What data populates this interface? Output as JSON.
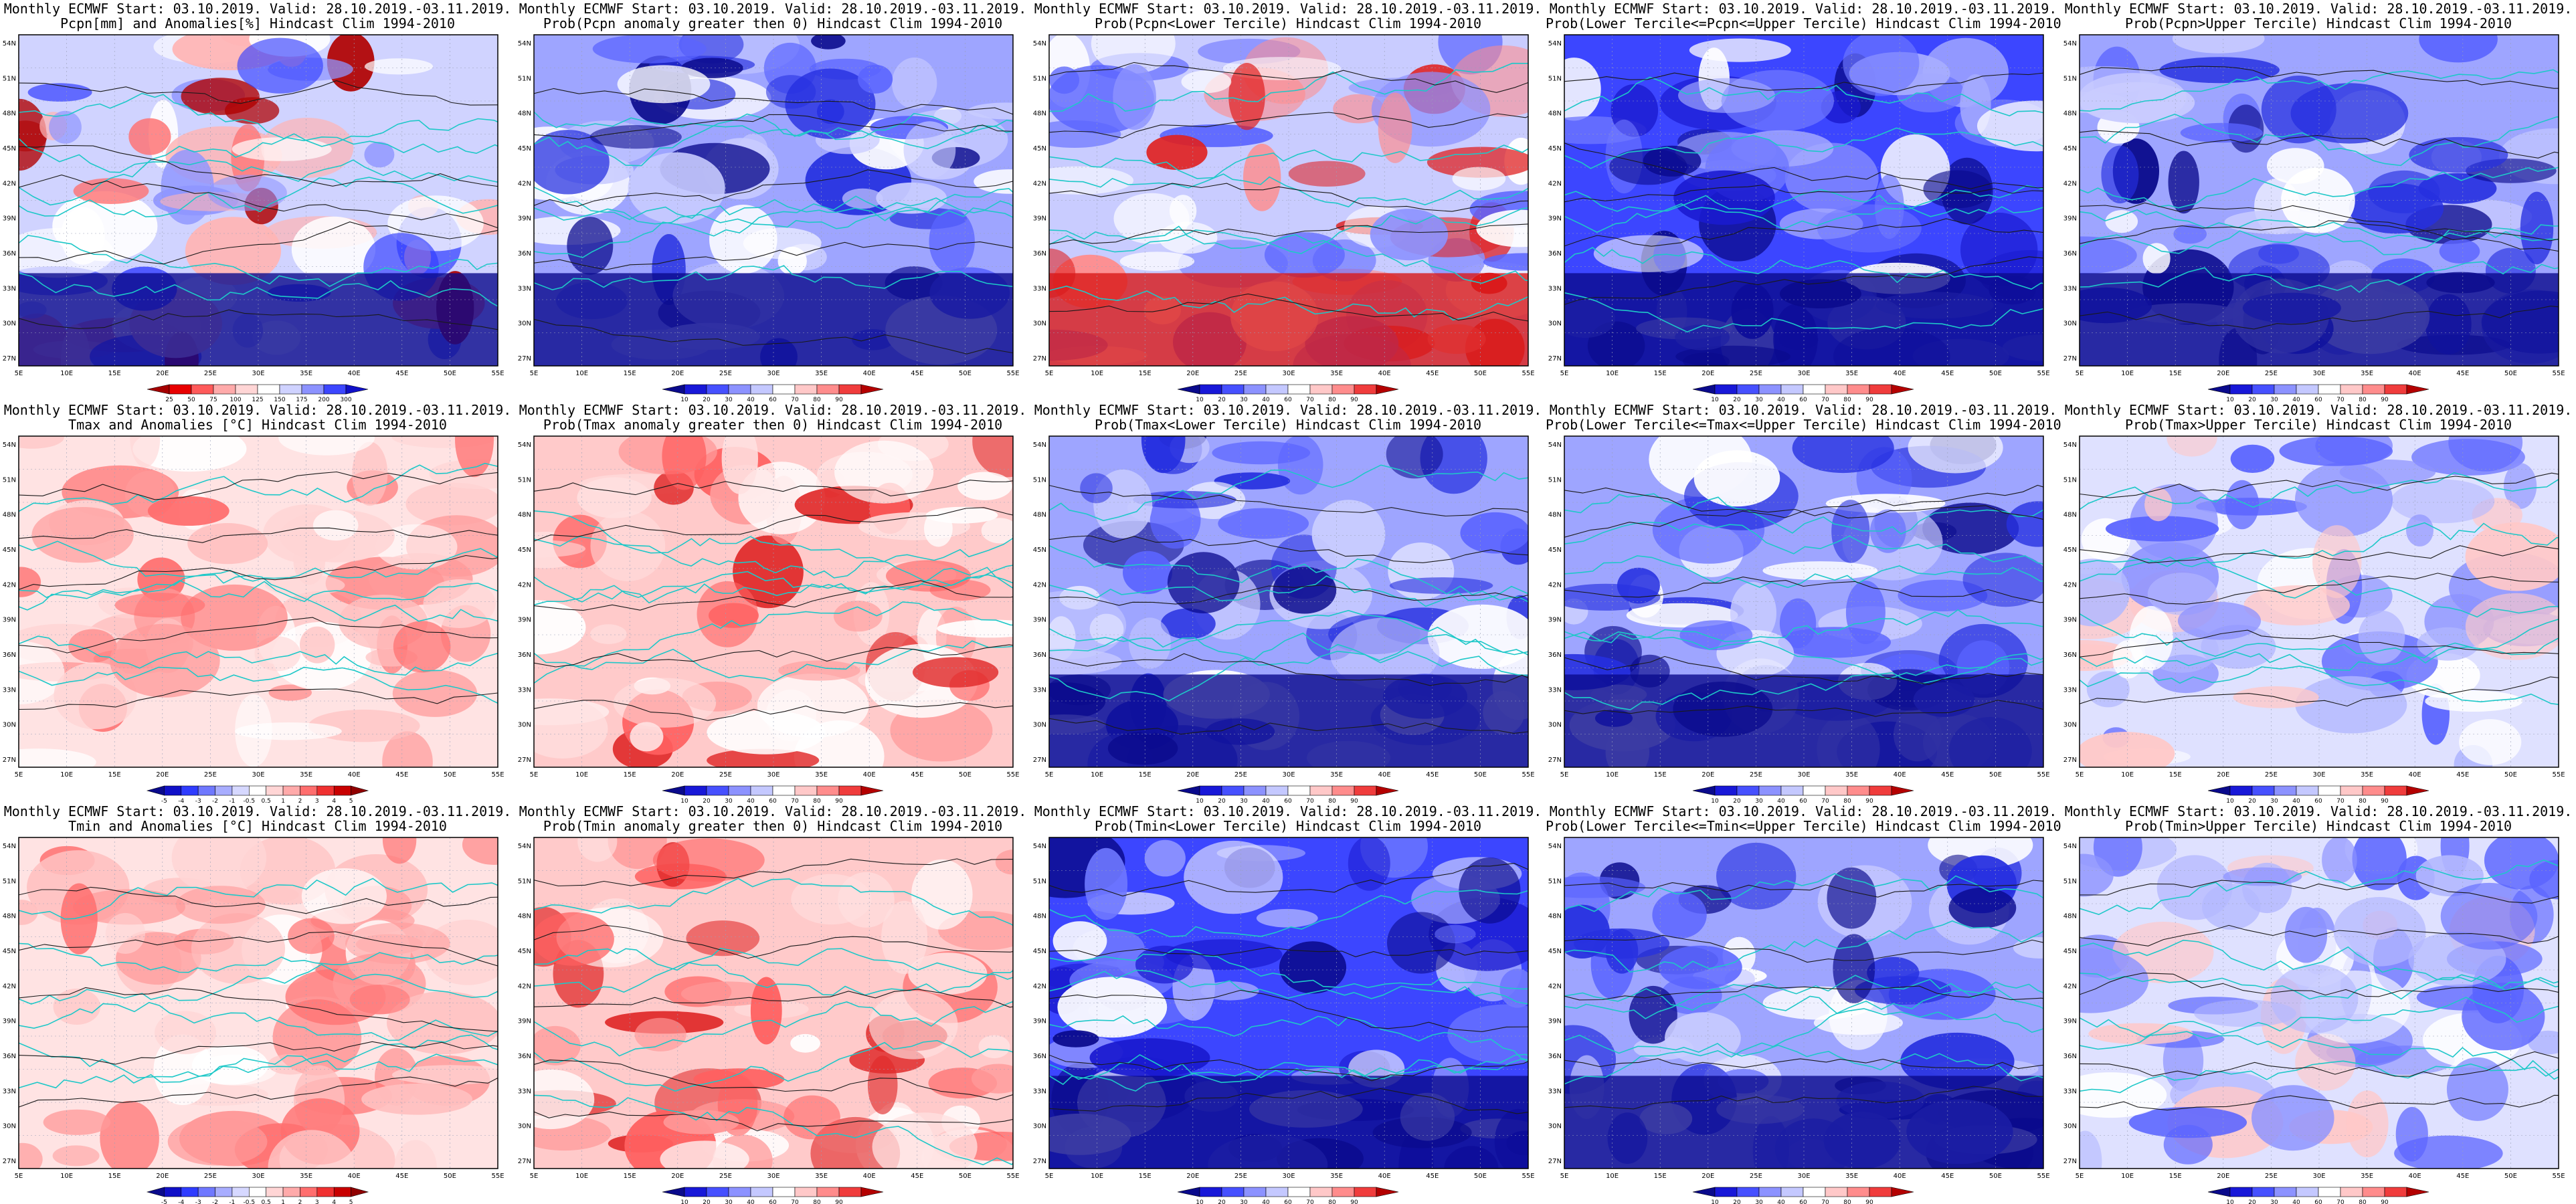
{
  "header": {
    "line1": "Monthly ECMWF Start: 03.10.2019. Valid: 28.10.2019.-03.11.2019."
  },
  "axes": {
    "lat_labels": [
      "54N",
      "51N",
      "48N",
      "45N",
      "42N",
      "39N",
      "36N",
      "33N",
      "30N",
      "27N"
    ],
    "lon_labels": [
      "5E",
      "10E",
      "15E",
      "20E",
      "25E",
      "30E",
      "35E",
      "40E",
      "45E",
      "50E",
      "55E"
    ]
  },
  "colorbars": {
    "precip": {
      "labels": [
        "25",
        "50",
        "75",
        "100",
        "125",
        "150",
        "175",
        "200",
        "300"
      ],
      "colors": [
        "#a50000",
        "#e80000",
        "#ff5a5a",
        "#ffaaaa",
        "#ffd5d5",
        "#ffffff",
        "#cfd2ff",
        "#8c92ff",
        "#3c46ff",
        "#1010c8"
      ]
    },
    "anomaly": {
      "labels": [
        "-5",
        "-4",
        "-3",
        "-2",
        "-1",
        "-0.5",
        "0.5",
        "1",
        "2",
        "3",
        "4",
        "5"
      ],
      "colors": [
        "#0a0a8c",
        "#1010c8",
        "#2f3cff",
        "#6f78ff",
        "#a8adff",
        "#d6d8ff",
        "#ffffff",
        "#ffd5d5",
        "#ffaaaa",
        "#ff6e6e",
        "#f03030",
        "#c80000",
        "#900000"
      ]
    },
    "probability": {
      "labels": [
        "10",
        "20",
        "30",
        "40",
        "60",
        "70",
        "80",
        "90"
      ],
      "colors": [
        "#0a0a8c",
        "#1818d8",
        "#4650ff",
        "#8c92ff",
        "#c4c8ff",
        "#ffffff",
        "#ffc8c8",
        "#ff8c8c",
        "#f03c3c",
        "#b40000"
      ]
    }
  },
  "panels": [
    {
      "row": 0,
      "col": 0,
      "title2": "Pcpn[mm] and Anomalies[%] Hindcast Clim 1994-2010",
      "scheme": "precip",
      "colorbar": "precip"
    },
    {
      "row": 0,
      "col": 1,
      "title2": "Prob(Pcpn anomaly greater then 0) Hindcast Clim 1994-2010",
      "scheme": "blue",
      "colorbar": "probability"
    },
    {
      "row": 0,
      "col": 2,
      "title2": "Prob(Pcpn<Lower Tercile) Hindcast Clim 1994-2010",
      "scheme": "bluered",
      "colorbar": "probability"
    },
    {
      "row": 0,
      "col": 3,
      "title2": "Prob(Lower Tercile<=Pcpn<=Upper Tercile) Hindcast Clim 1994-2010",
      "scheme": "darkblue",
      "colorbar": "probability"
    },
    {
      "row": 0,
      "col": 4,
      "title2": "Prob(Pcpn>Upper Tercile) Hindcast Clim 1994-2010",
      "scheme": "blue",
      "colorbar": "probability"
    },
    {
      "row": 1,
      "col": 0,
      "title2": "Tmax and Anomalies [°C] Hindcast Clim 1994-2010",
      "scheme": "pink",
      "colorbar": "anomaly"
    },
    {
      "row": 1,
      "col": 1,
      "title2": "Prob(Tmax anomaly greater then 0) Hindcast Clim 1994-2010",
      "scheme": "pinkred",
      "colorbar": "probability"
    },
    {
      "row": 1,
      "col": 2,
      "title2": "Prob(Tmax<Lower Tercile) Hindcast Clim 1994-2010",
      "scheme": "blue",
      "colorbar": "probability"
    },
    {
      "row": 1,
      "col": 3,
      "title2": "Prob(Lower Tercile<=Tmax<=Upper Tercile) Hindcast Clim 1994-2010",
      "scheme": "blue",
      "colorbar": "probability"
    },
    {
      "row": 1,
      "col": 4,
      "title2": "Prob(Tmax>Upper Tercile) Hindcast Clim 1994-2010",
      "scheme": "lightblue",
      "colorbar": "probability"
    },
    {
      "row": 2,
      "col": 0,
      "title2": "Tmin and Anomalies [°C] Hindcast Clim 1994-2010",
      "scheme": "pink",
      "colorbar": "anomaly"
    },
    {
      "row": 2,
      "col": 1,
      "title2": "Prob(Tmin anomaly greater then 0) Hindcast Clim 1994-2010",
      "scheme": "pinkred",
      "colorbar": "probability"
    },
    {
      "row": 2,
      "col": 2,
      "title2": "Prob(Tmin<Lower Tercile) Hindcast Clim 1994-2010",
      "scheme": "darkblue",
      "colorbar": "probability"
    },
    {
      "row": 2,
      "col": 3,
      "title2": "Prob(Lower Tercile<=Tmin<=Upper Tercile) Hindcast Clim 1994-2010",
      "scheme": "blue",
      "colorbar": "probability"
    },
    {
      "row": 2,
      "col": 4,
      "title2": "Prob(Tmin>Upper Tercile) Hindcast Clim 1994-2010",
      "scheme": "lightblue",
      "colorbar": "probability"
    }
  ]
}
